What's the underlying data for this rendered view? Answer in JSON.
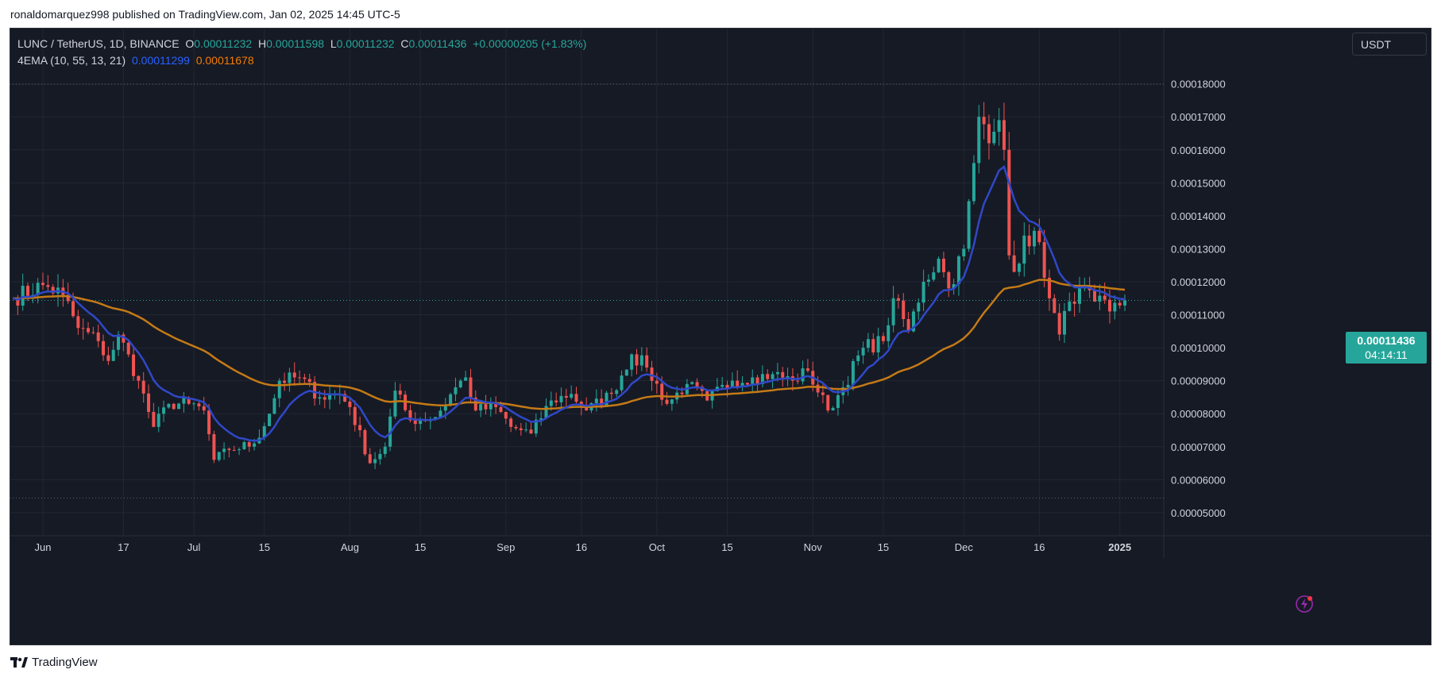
{
  "header": {
    "credit": "ronaldomarquez998 published on TradingView.com, Jan 02, 2025 14:45 UTC-5"
  },
  "legend": {
    "symbol": "LUNC / TetherUS, 1D, BINANCE",
    "open_label": "O",
    "open": "0.00011232",
    "high_label": "H",
    "high": "0.00011598",
    "low_label": "L",
    "low": "0.00011232",
    "close_label": "C",
    "close": "0.00011436",
    "change": "+0.00000205 (+1.83%)",
    "indicator": "4EMA (10, 55, 13, 21)",
    "ema_fast_value": "0.00011299",
    "ema_slow_value": "0.00011678"
  },
  "currency": "USDT",
  "price_tag": {
    "price": "0.00011436",
    "countdown": "04:14:11"
  },
  "footer": {
    "brand": "TradingView"
  },
  "colors": {
    "background": "#161a25",
    "grid": "#232734",
    "up": "#26a69a",
    "down": "#ef5350",
    "ema_fast": "#2f48c8",
    "ema_slow": "#c47a16",
    "axis_text": "#d1d4dc"
  },
  "chart_data": {
    "type": "candlestick",
    "y_axis_labels": [
      "0.00005000",
      "0.00006000",
      "0.00007000",
      "0.00008000",
      "0.00009000",
      "0.00010000",
      "0.00011000",
      "0.00012000",
      "0.00013000",
      "0.00014000",
      "0.00015000",
      "0.00016000",
      "0.00017000",
      "0.00018000"
    ],
    "x_axis_labels": [
      "Jun",
      "17",
      "Jul",
      "15",
      "Aug",
      "15",
      "Sep",
      "16",
      "Oct",
      "15",
      "Nov",
      "15",
      "Dec",
      "16",
      "2025"
    ],
    "ylim": [
      4.3e-05,
      0.000197
    ],
    "date_range": [
      "2024-05-26",
      "2025-01-02"
    ],
    "dotted_lines": [
      0.00017985,
      5.442e-05
    ],
    "last_price": 0.00011436,
    "anchors": [
      {
        "date": "2024-05-26",
        "price": 0.000115
      },
      {
        "date": "2024-06-01",
        "price": 0.000119
      },
      {
        "date": "2024-06-05",
        "price": 0.000116
      },
      {
        "date": "2024-06-08",
        "price": 0.000106
      },
      {
        "date": "2024-06-12",
        "price": 0.000102
      },
      {
        "date": "2024-06-14",
        "price": 9.6e-05
      },
      {
        "date": "2024-06-16",
        "price": 0.000104
      },
      {
        "date": "2024-06-20",
        "price": 9e-05
      },
      {
        "date": "2024-06-23",
        "price": 7.6e-05
      },
      {
        "date": "2024-06-26",
        "price": 8.3e-05
      },
      {
        "date": "2024-06-30",
        "price": 8.3e-05
      },
      {
        "date": "2024-07-03",
        "price": 8.1e-05
      },
      {
        "date": "2024-07-05",
        "price": 6.6e-05
      },
      {
        "date": "2024-07-08",
        "price": 6.9e-05
      },
      {
        "date": "2024-07-13",
        "price": 7.1e-05
      },
      {
        "date": "2024-07-16",
        "price": 8e-05
      },
      {
        "date": "2024-07-18",
        "price": 9e-05
      },
      {
        "date": "2024-07-22",
        "price": 9.1e-05
      },
      {
        "date": "2024-07-26",
        "price": 8.5e-05
      },
      {
        "date": "2024-07-30",
        "price": 8.6e-05
      },
      {
        "date": "2024-08-01",
        "price": 8.2e-05
      },
      {
        "date": "2024-08-05",
        "price": 6.5e-05
      },
      {
        "date": "2024-08-08",
        "price": 7e-05
      },
      {
        "date": "2024-08-10",
        "price": 8.7e-05
      },
      {
        "date": "2024-08-13",
        "price": 7.8e-05
      },
      {
        "date": "2024-08-18",
        "price": 7.9e-05
      },
      {
        "date": "2024-08-22",
        "price": 8.8e-05
      },
      {
        "date": "2024-08-24",
        "price": 9.1e-05
      },
      {
        "date": "2024-08-26",
        "price": 8.1e-05
      },
      {
        "date": "2024-08-30",
        "price": 8.2e-05
      },
      {
        "date": "2024-09-02",
        "price": 7.6e-05
      },
      {
        "date": "2024-09-06",
        "price": 7.4e-05
      },
      {
        "date": "2024-09-10",
        "price": 8.4e-05
      },
      {
        "date": "2024-09-14",
        "price": 8.6e-05
      },
      {
        "date": "2024-09-17",
        "price": 8.1e-05
      },
      {
        "date": "2024-09-22",
        "price": 8.6e-05
      },
      {
        "date": "2024-09-26",
        "price": 9.8e-05
      },
      {
        "date": "2024-09-29",
        "price": 9.4e-05
      },
      {
        "date": "2024-10-03",
        "price": 8.3e-05
      },
      {
        "date": "2024-10-07",
        "price": 8.9e-05
      },
      {
        "date": "2024-10-11",
        "price": 8.4e-05
      },
      {
        "date": "2024-10-16",
        "price": 9e-05
      },
      {
        "date": "2024-10-20",
        "price": 9.1e-05
      },
      {
        "date": "2024-10-24",
        "price": 9.2e-05
      },
      {
        "date": "2024-10-28",
        "price": 9e-05
      },
      {
        "date": "2024-10-31",
        "price": 9.3e-05
      },
      {
        "date": "2024-11-04",
        "price": 8.1e-05
      },
      {
        "date": "2024-11-07",
        "price": 8.8e-05
      },
      {
        "date": "2024-11-11",
        "price": 0.0001
      },
      {
        "date": "2024-11-15",
        "price": 0.000102
      },
      {
        "date": "2024-11-17",
        "price": 0.000115
      },
      {
        "date": "2024-11-20",
        "price": 0.000105
      },
      {
        "date": "2024-11-23",
        "price": 0.00012
      },
      {
        "date": "2024-11-26",
        "price": 0.000127
      },
      {
        "date": "2024-11-28",
        "price": 0.000118
      },
      {
        "date": "2024-12-01",
        "price": 0.00013
      },
      {
        "date": "2024-12-03",
        "price": 0.000156
      },
      {
        "date": "2024-12-04",
        "price": 0.00017
      },
      {
        "date": "2024-12-06",
        "price": 0.000162
      },
      {
        "date": "2024-12-08",
        "price": 0.000169
      },
      {
        "date": "2024-12-09",
        "price": 0.00016
      },
      {
        "date": "2024-12-10",
        "price": 0.000128
      },
      {
        "date": "2024-12-11",
        "price": 0.000123
      },
      {
        "date": "2024-12-13",
        "price": 0.000134
      },
      {
        "date": "2024-12-16",
        "price": 0.000132
      },
      {
        "date": "2024-12-18",
        "price": 0.000115
      },
      {
        "date": "2024-12-20",
        "price": 0.000104
      },
      {
        "date": "2024-12-22",
        "price": 0.000114
      },
      {
        "date": "2024-12-24",
        "price": 0.000118
      },
      {
        "date": "2024-12-27",
        "price": 0.000114
      },
      {
        "date": "2024-12-30",
        "price": 0.000111
      },
      {
        "date": "2025-01-02",
        "price": 0.0001144
      }
    ],
    "ema_fast_period": 10,
    "ema_slow_period": 55
  }
}
